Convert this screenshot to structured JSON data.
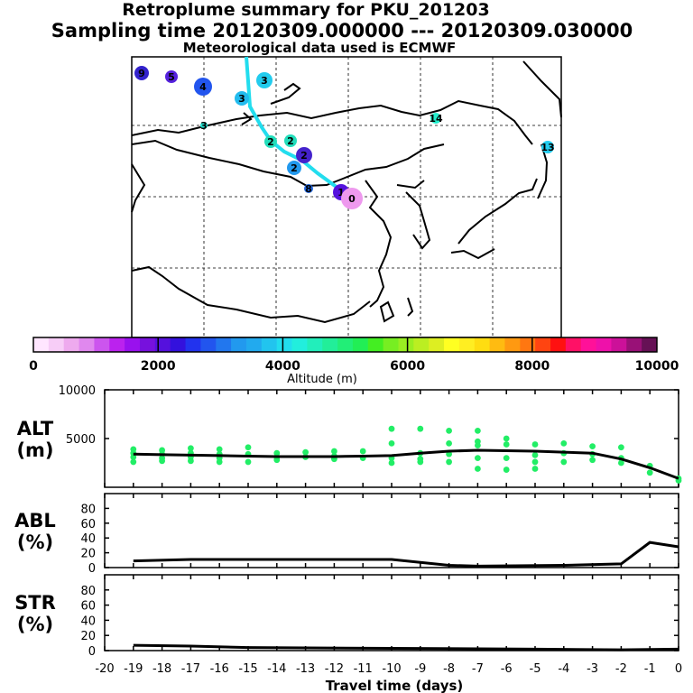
{
  "header": {
    "title": "Retroplume summary for PKU_201203",
    "sampling": "Sampling time   20120309.000000 --- 20120309.030000",
    "met": "Meteorological data used is ECMWF"
  },
  "map": {
    "trajectory_color": "#22ddee",
    "markers": [
      {
        "label": "9",
        "color": "#3322cc"
      },
      {
        "label": "5",
        "color": "#5522dd"
      },
      {
        "label": "4",
        "color": "#2255ee"
      },
      {
        "label": "3",
        "color": "#22bbee"
      },
      {
        "label": "3",
        "color": "#22ccee"
      },
      {
        "label": "3",
        "color": "#22ddcc"
      },
      {
        "label": "14",
        "color": "#22eecc"
      },
      {
        "label": "13",
        "color": "#22ccee"
      },
      {
        "label": "2",
        "color": "#22ddbb"
      },
      {
        "label": "2",
        "color": "#22ddbb"
      },
      {
        "label": "2",
        "color": "#4422cc"
      },
      {
        "label": "2",
        "color": "#2299ee"
      },
      {
        "label": "8",
        "color": "#2266dd"
      },
      {
        "label": "1",
        "color": "#5511dd"
      },
      {
        "label": "0",
        "color": "#ee99ee"
      }
    ]
  },
  "colorbar": {
    "ticks": [
      "0",
      "2000",
      "4000",
      "6000",
      "8000",
      "10000"
    ],
    "label": "Altitude (m)",
    "colors": [
      "#ffe6ff",
      "#f7cdf7",
      "#eeaaee",
      "#e088ee",
      "#cc55ee",
      "#bb22ee",
      "#9911ee",
      "#7711dd",
      "#5511dd",
      "#3311dd",
      "#2233ee",
      "#2255ee",
      "#2277ee",
      "#2299ee",
      "#22aaee",
      "#22c4ee",
      "#22ddee",
      "#22eedd",
      "#22eebb",
      "#22ee99",
      "#22ee77",
      "#22ee55",
      "#44ee22",
      "#77ee22",
      "#99ee22",
      "#bbee22",
      "#ddee22",
      "#ffff22",
      "#ffee22",
      "#ffdd11",
      "#ffbb11",
      "#ff9911",
      "#ff7711",
      "#ff4411",
      "#ff1111",
      "#ff1166",
      "#ff1199",
      "#ee11aa",
      "#cc1199",
      "#991177",
      "#661155"
    ]
  },
  "chart_data": [
    {
      "type": "scatter",
      "ylabel": "ALT\n(m)",
      "ylim": [
        0,
        10000
      ],
      "yticks": [
        "10000",
        "5000"
      ],
      "point_color": "#22ee66",
      "series": [
        {
          "name": "median",
          "x": [
            -19,
            -18,
            -17,
            -16,
            -15,
            -14,
            -13,
            -12,
            -11,
            -10,
            -9,
            -8,
            -7,
            -6,
            -5,
            -4,
            -3,
            -2,
            -1,
            0
          ],
          "values": [
            3400,
            3350,
            3300,
            3250,
            3200,
            3150,
            3150,
            3150,
            3200,
            3250,
            3500,
            3700,
            3800,
            3750,
            3700,
            3600,
            3500,
            2900,
            2000,
            900
          ]
        },
        {
          "name": "points",
          "x": [
            -19,
            -19,
            -19,
            -19,
            -18,
            -18,
            -18,
            -18,
            -17,
            -17,
            -17,
            -17,
            -16,
            -16,
            -16,
            -16,
            -15,
            -15,
            -15,
            -14,
            -14,
            -14,
            -13,
            -13,
            -12,
            -12,
            -12,
            -11,
            -11,
            -10,
            -10,
            -10,
            -10,
            -9,
            -9,
            -9,
            -9,
            -8,
            -8,
            -8,
            -8,
            -7,
            -7,
            -7,
            -7,
            -7,
            -6,
            -6,
            -6,
            -6,
            -5,
            -5,
            -5,
            -5,
            -4,
            -4,
            -4,
            -3,
            -3,
            -3,
            -2,
            -2,
            -2,
            -1,
            -1,
            0,
            0
          ],
          "values": [
            3900,
            3500,
            3100,
            2600,
            3800,
            3400,
            3000,
            2700,
            4000,
            3500,
            3100,
            2700,
            3900,
            3400,
            3000,
            2600,
            4100,
            3400,
            2600,
            3500,
            3100,
            2800,
            3600,
            3100,
            3700,
            3200,
            2900,
            3700,
            3000,
            6000,
            4500,
            3000,
            2500,
            6000,
            3500,
            2900,
            2600,
            5800,
            4500,
            3400,
            2600,
            5800,
            4700,
            4300,
            3000,
            1900,
            5000,
            4400,
            3000,
            1800,
            4400,
            3300,
            2600,
            1900,
            4500,
            3500,
            2600,
            4200,
            3400,
            2800,
            4100,
            3000,
            2500,
            2200,
            1500,
            900,
            700
          ]
        }
      ]
    },
    {
      "type": "line",
      "ylabel": "ABL\n(%)",
      "ylim": [
        0,
        100
      ],
      "yticks": [
        "80",
        "60",
        "40",
        "20",
        "0"
      ],
      "x": [
        -19,
        -17,
        -10,
        -8,
        -7,
        -4,
        -2,
        -1,
        0
      ],
      "values": [
        9,
        11,
        11,
        3,
        2,
        3,
        5,
        34,
        28
      ]
    },
    {
      "type": "line",
      "ylabel": "STR\n(%)",
      "ylim": [
        0,
        100
      ],
      "yticks": [
        "80",
        "60",
        "40",
        "20",
        "0"
      ],
      "x": [
        -19,
        -17,
        -15,
        -10,
        -5,
        -2,
        0
      ],
      "values": [
        7,
        6,
        4,
        3,
        2,
        1,
        2
      ]
    }
  ],
  "xaxis": {
    "ticks": [
      "-20",
      "-19",
      "-18",
      "-17",
      "-16",
      "-15",
      "-14",
      "-13",
      "-12",
      "-11",
      "-10",
      "-9",
      "-8",
      "-7",
      "-6",
      "-5",
      "-4",
      "-3",
      "-2",
      "-1",
      "0"
    ],
    "label": "Travel time (days)"
  }
}
